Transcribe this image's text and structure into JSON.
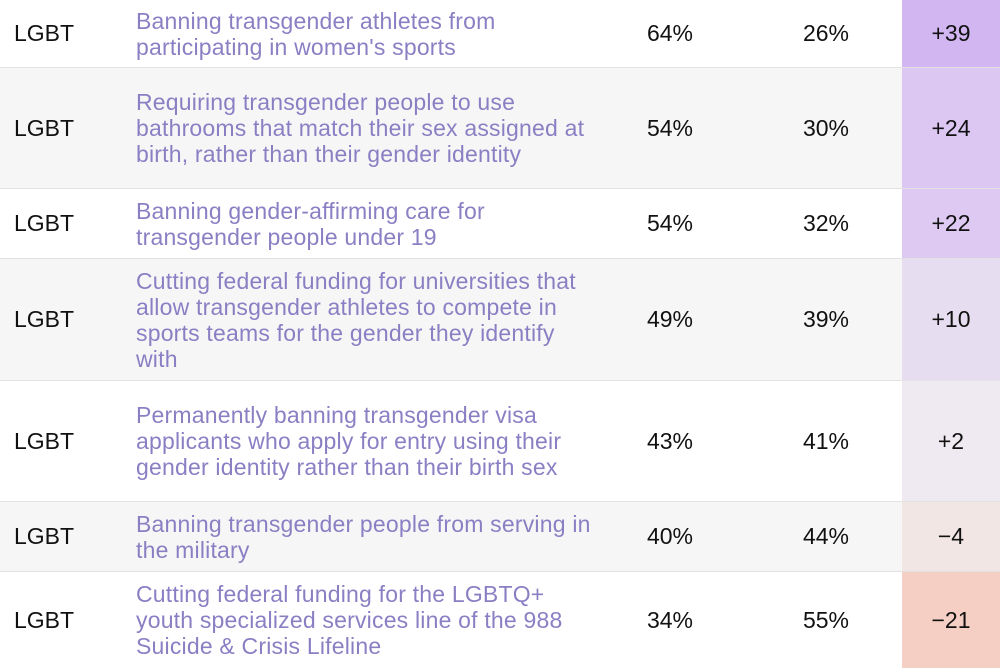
{
  "rows": [
    {
      "category": "LGBT",
      "policy": "Banning transgender athletes from participating in women's sports",
      "support": "64%",
      "oppose": "26%",
      "net": "+39",
      "net_color": "#d2b6f2"
    },
    {
      "category": "LGBT",
      "policy": "Requiring transgender people to use bathrooms that match their sex assigned at birth, rather than their gender identity",
      "support": "54%",
      "oppose": "30%",
      "net": "+24",
      "net_color": "#dcc7f3"
    },
    {
      "category": "LGBT",
      "policy": "Banning gender-affirming care for transgender people under 19",
      "support": "54%",
      "oppose": "32%",
      "net": "+22",
      "net_color": "#ddc9f2"
    },
    {
      "category": "LGBT",
      "policy": "Cutting federal funding for universities that allow transgender athletes to compete in sports teams for the gender they identify with",
      "support": "49%",
      "oppose": "39%",
      "net": "+10",
      "net_color": "#e7ddf0"
    },
    {
      "category": "LGBT",
      "policy": "Permanently banning transgender visa applicants who apply for entry using their gender identity rather than their birth sex",
      "support": "43%",
      "oppose": "41%",
      "net": "+2",
      "net_color": "#efeaf1"
    },
    {
      "category": "LGBT",
      "policy": "Banning transgender people from serving in the military",
      "support": "40%",
      "oppose": "44%",
      "net": "−4",
      "net_color": "#f2e6e4"
    },
    {
      "category": "LGBT",
      "policy": "Cutting federal funding for the LGBTQ+ youth specialized services line of the 988 Suicide & Crisis Lifeline",
      "support": "34%",
      "oppose": "55%",
      "net": "−21",
      "net_color": "#f5cfc3"
    }
  ]
}
